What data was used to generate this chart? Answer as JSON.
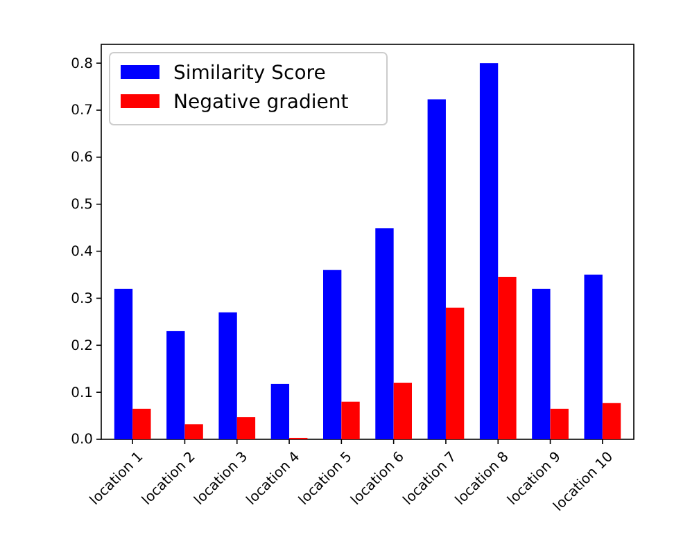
{
  "chart_data": {
    "type": "bar",
    "categories": [
      "location 1",
      "location 2",
      "location 3",
      "location 4",
      "location 5",
      "location 6",
      "location 7",
      "location 8",
      "location 9",
      "location 10"
    ],
    "series": [
      {
        "name": "Similarity Score",
        "color": "#0000ff",
        "values": [
          0.32,
          0.23,
          0.27,
          0.118,
          0.36,
          0.449,
          0.723,
          0.8,
          0.32,
          0.35
        ]
      },
      {
        "name": "Negative gradient",
        "color": "#ff0000",
        "values": [
          0.065,
          0.032,
          0.047,
          0.003,
          0.08,
          0.12,
          0.28,
          0.345,
          0.065,
          0.077
        ]
      }
    ],
    "ylim": [
      0,
      0.84
    ],
    "yticks": [
      {
        "value": 0,
        "label": "0.0"
      },
      0.1,
      0.2,
      0.3,
      0.4,
      0.5,
      0.6,
      0.7,
      0.8
    ],
    "legend": "top left",
    "grid": false
  }
}
